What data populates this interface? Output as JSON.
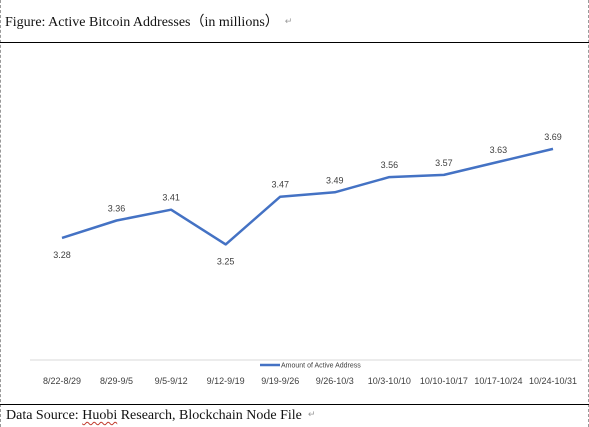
{
  "figure": {
    "caption": "Figure: Active Bitcoin Addresses（in millions）",
    "return_mark": "↵"
  },
  "source": {
    "prefix": "Data Source: ",
    "org": "Huobi",
    "suffix": " Research, Blockchain Node File",
    "return_mark": "↵"
  },
  "colors": {
    "line": "#4472C4",
    "text": "#404040",
    "axis": "#d9d9d9"
  },
  "chart_data": {
    "type": "line",
    "title": "",
    "xlabel": "",
    "ylabel": "",
    "categories": [
      "8/22-8/29",
      "8/29-9/5",
      "9/5-9/12",
      "9/12-9/19",
      "9/19-9/26",
      "9/26-10/3",
      "10/3-10/10",
      "10/10-10/17",
      "10/17-10/24",
      "10/24-10/31"
    ],
    "series": [
      {
        "name": "Amount of Active Address",
        "values": [
          3.28,
          3.36,
          3.41,
          3.25,
          3.47,
          3.49,
          3.56,
          3.57,
          3.63,
          3.69
        ],
        "labels": [
          "3.28",
          "3.36",
          "3.41",
          "3.25",
          "3.47",
          "3.49",
          "3.56",
          "3.57",
          "3.63",
          "3.69"
        ]
      }
    ],
    "ylim": [
      3.1,
      3.8
    ],
    "grid": false,
    "legend": "bottom"
  }
}
